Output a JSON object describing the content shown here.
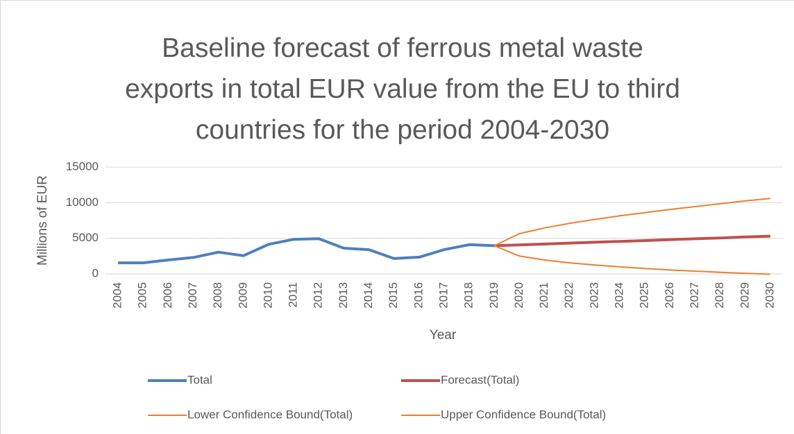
{
  "chart_data": {
    "type": "line",
    "title": "Baseline forecast of ferrous metal waste exports in total EUR value from the EU to third countries for the period 2004-2030",
    "x_label": "Year",
    "y_label": "Millions of EUR",
    "categories": [
      "2004",
      "2005",
      "2006",
      "2007",
      "2008",
      "2009",
      "2010",
      "2011",
      "2012",
      "2013",
      "2014",
      "2015",
      "2016",
      "2017",
      "2018",
      "2019",
      "2020",
      "2021",
      "2022",
      "2023",
      "2024",
      "2025",
      "2026",
      "2027",
      "2028",
      "2029",
      "2030"
    ],
    "series": [
      {
        "name": "Total",
        "color": "#4e7fbf",
        "width": 4,
        "values": [
          1550,
          1550,
          1950,
          2300,
          3050,
          2550,
          4150,
          4850,
          4950,
          3600,
          3400,
          2150,
          2350,
          3400,
          4100,
          3950,
          null,
          null,
          null,
          null,
          null,
          null,
          null,
          null,
          null,
          null,
          null
        ]
      },
      {
        "name": "Forecast(Total)",
        "color": "#c0504d",
        "width": 4,
        "values": [
          null,
          null,
          null,
          null,
          null,
          null,
          null,
          null,
          null,
          null,
          null,
          null,
          null,
          null,
          null,
          3950,
          4070,
          4190,
          4320,
          4440,
          4560,
          4680,
          4810,
          4930,
          5050,
          5180,
          5300
        ]
      },
      {
        "name": "Lower Confidence Bound(Total)",
        "color": "#ed7d31",
        "width": 2,
        "values": [
          null,
          null,
          null,
          null,
          null,
          null,
          null,
          null,
          null,
          null,
          null,
          null,
          null,
          null,
          null,
          3950,
          2500,
          1950,
          1550,
          1250,
          980,
          750,
          550,
          380,
          220,
          80,
          -50
        ]
      },
      {
        "name": "Upper Confidence Bound(Total)",
        "color": "#ed7d31",
        "width": 2,
        "values": [
          null,
          null,
          null,
          null,
          null,
          null,
          null,
          null,
          null,
          null,
          null,
          null,
          null,
          null,
          null,
          3950,
          5650,
          6450,
          7100,
          7650,
          8150,
          8600,
          9050,
          9450,
          9850,
          10250,
          10600
        ]
      }
    ],
    "ylim": [
      0,
      15000
    ],
    "yticks": [
      0,
      5000,
      10000,
      15000
    ],
    "grid": true,
    "legend": "bottom"
  }
}
